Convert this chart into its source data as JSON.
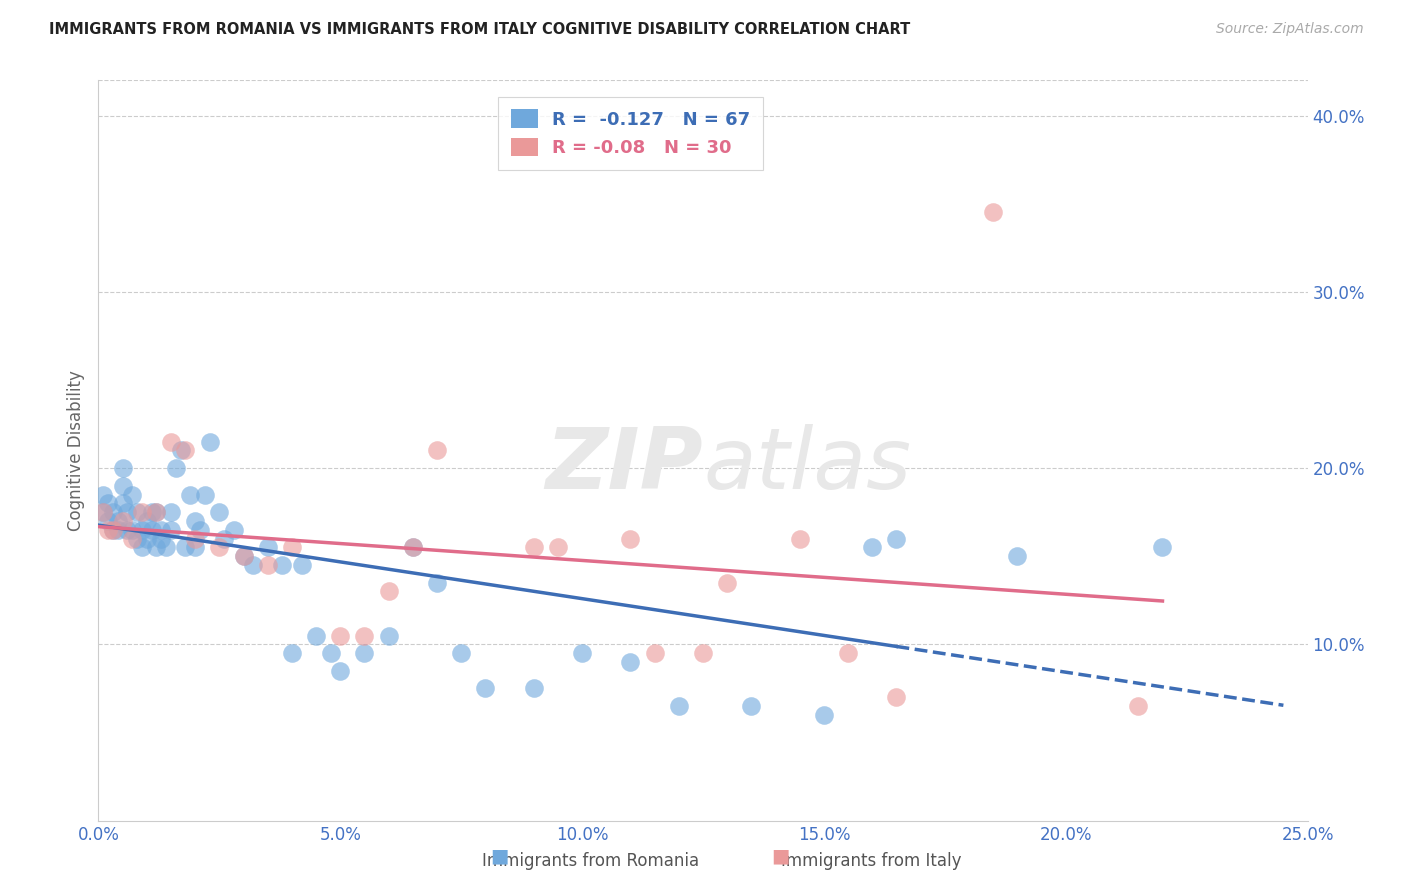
{
  "title": "IMMIGRANTS FROM ROMANIA VS IMMIGRANTS FROM ITALY COGNITIVE DISABILITY CORRELATION CHART",
  "source": "Source: ZipAtlas.com",
  "xlabel": "",
  "ylabel": "Cognitive Disability",
  "xlim": [
    0.0,
    0.25
  ],
  "ylim": [
    0.0,
    0.42
  ],
  "xticks": [
    0.0,
    0.05,
    0.1,
    0.15,
    0.2,
    0.25
  ],
  "yticks_right": [
    0.1,
    0.2,
    0.3,
    0.4
  ],
  "romania_color": "#6fa8dc",
  "italy_color": "#ea9999",
  "romania_line_color": "#3d6db5",
  "italy_line_color": "#e06c8a",
  "romania_R": -0.127,
  "romania_N": 67,
  "italy_R": -0.08,
  "italy_N": 30,
  "background_color": "#ffffff",
  "grid_color": "#cccccc",
  "axis_label_color": "#4472c4",
  "romania_scatter_x": [
    0.001,
    0.001,
    0.002,
    0.002,
    0.003,
    0.003,
    0.004,
    0.004,
    0.005,
    0.005,
    0.005,
    0.006,
    0.006,
    0.007,
    0.007,
    0.008,
    0.008,
    0.009,
    0.009,
    0.01,
    0.01,
    0.011,
    0.011,
    0.012,
    0.012,
    0.013,
    0.013,
    0.014,
    0.015,
    0.015,
    0.016,
    0.017,
    0.018,
    0.019,
    0.02,
    0.02,
    0.021,
    0.022,
    0.023,
    0.025,
    0.026,
    0.028,
    0.03,
    0.032,
    0.035,
    0.038,
    0.04,
    0.042,
    0.045,
    0.048,
    0.05,
    0.055,
    0.06,
    0.065,
    0.07,
    0.075,
    0.08,
    0.09,
    0.1,
    0.11,
    0.12,
    0.135,
    0.15,
    0.16,
    0.165,
    0.19,
    0.22
  ],
  "romania_scatter_y": [
    0.175,
    0.185,
    0.17,
    0.18,
    0.165,
    0.175,
    0.17,
    0.165,
    0.2,
    0.19,
    0.18,
    0.175,
    0.165,
    0.185,
    0.165,
    0.175,
    0.16,
    0.165,
    0.155,
    0.17,
    0.16,
    0.175,
    0.165,
    0.175,
    0.155,
    0.16,
    0.165,
    0.155,
    0.175,
    0.165,
    0.2,
    0.21,
    0.155,
    0.185,
    0.17,
    0.155,
    0.165,
    0.185,
    0.215,
    0.175,
    0.16,
    0.165,
    0.15,
    0.145,
    0.155,
    0.145,
    0.095,
    0.145,
    0.105,
    0.095,
    0.085,
    0.095,
    0.105,
    0.155,
    0.135,
    0.095,
    0.075,
    0.075,
    0.095,
    0.09,
    0.065,
    0.065,
    0.06,
    0.155,
    0.16,
    0.15,
    0.155
  ],
  "italy_scatter_x": [
    0.001,
    0.002,
    0.003,
    0.005,
    0.007,
    0.009,
    0.012,
    0.015,
    0.018,
    0.02,
    0.025,
    0.03,
    0.035,
    0.04,
    0.05,
    0.055,
    0.06,
    0.065,
    0.07,
    0.09,
    0.095,
    0.11,
    0.115,
    0.125,
    0.13,
    0.145,
    0.155,
    0.165,
    0.185,
    0.215
  ],
  "italy_scatter_y": [
    0.175,
    0.165,
    0.165,
    0.17,
    0.16,
    0.175,
    0.175,
    0.215,
    0.21,
    0.16,
    0.155,
    0.15,
    0.145,
    0.155,
    0.105,
    0.105,
    0.13,
    0.155,
    0.21,
    0.155,
    0.155,
    0.16,
    0.095,
    0.095,
    0.135,
    0.16,
    0.095,
    0.07,
    0.345,
    0.065
  ],
  "watermark_zip": "ZIP",
  "watermark_atlas": "atlas",
  "legend_label_romania": "Immigrants from Romania",
  "legend_label_italy": "Immigrants from Italy"
}
